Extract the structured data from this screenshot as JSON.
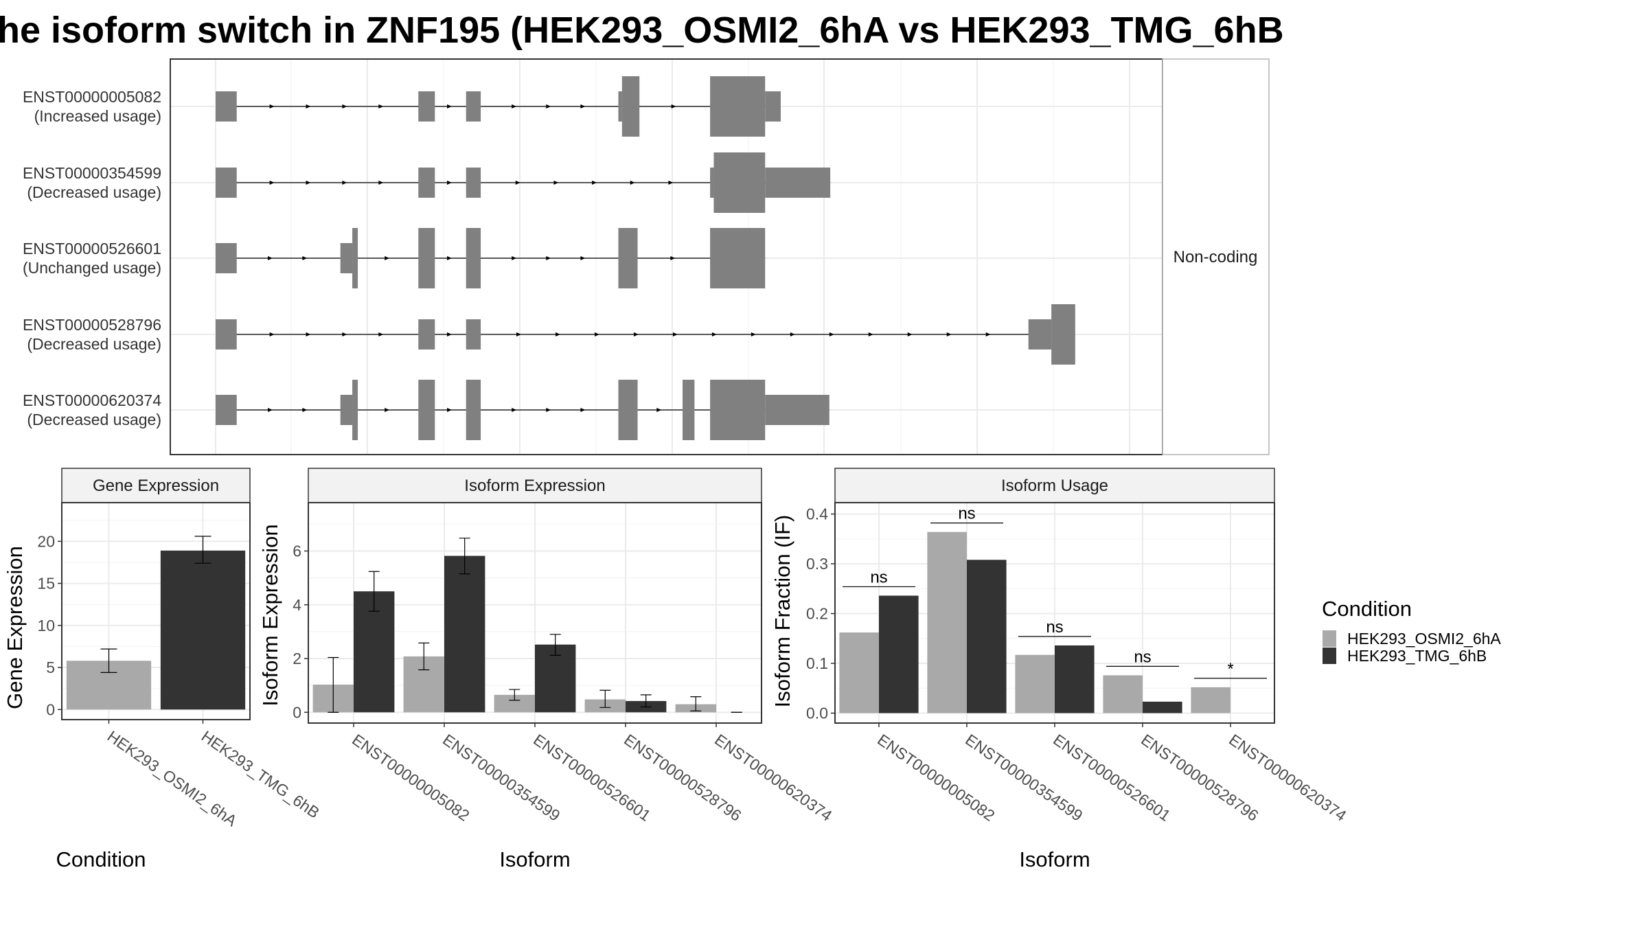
{
  "title": "he isoform switch in ZNF195 (HEK293_OSMI2_6hA vs HEK293_TMG_6hB",
  "colors": {
    "HEK293_OSMI2_6hA": "#a9a9a9",
    "HEK293_TMG_6hB": "#333333",
    "exon": "#808080",
    "grid": "#ebebeb",
    "panel_border": "#333333"
  },
  "chart_data": [
    {
      "type": "transcript_structure",
      "strip_label": "Non-coding",
      "x_range": [
        0,
        100
      ],
      "transcripts": [
        {
          "id": "ENST00000005082",
          "usage": "(Increased usage)",
          "exons": [
            {
              "start": 0,
              "end": 2.3,
              "size": "med"
            },
            {
              "start": 22.1,
              "end": 23.9,
              "size": "med"
            },
            {
              "start": 27.3,
              "end": 28.9,
              "size": "med"
            },
            {
              "start": 43.9,
              "end": 44.3,
              "size": "med"
            },
            {
              "start": 44.3,
              "end": 46.2,
              "size": "big"
            },
            {
              "start": 53.9,
              "end": 59.9,
              "size": "big"
            },
            {
              "start": 59.9,
              "end": 61.6,
              "size": "med"
            }
          ]
        },
        {
          "id": "ENST00000354599",
          "usage": "(Decreased usage)",
          "exons": [
            {
              "start": 0,
              "end": 2.3,
              "size": "med"
            },
            {
              "start": 22.1,
              "end": 23.9,
              "size": "med"
            },
            {
              "start": 27.3,
              "end": 28.9,
              "size": "med"
            },
            {
              "start": 53.9,
              "end": 54.3,
              "size": "med"
            },
            {
              "start": 54.3,
              "end": 59.9,
              "size": "big"
            },
            {
              "start": 59.9,
              "end": 67.0,
              "size": "med"
            }
          ]
        },
        {
          "id": "ENST00000526601",
          "usage": "(Unchanged usage)",
          "exons": [
            {
              "start": 0,
              "end": 2.3,
              "size": "med"
            },
            {
              "start": 13.6,
              "end": 14.9,
              "size": "med"
            },
            {
              "start": 14.9,
              "end": 15.5,
              "size": "big"
            },
            {
              "start": 22.1,
              "end": 23.9,
              "size": "big"
            },
            {
              "start": 27.3,
              "end": 28.9,
              "size": "big"
            },
            {
              "start": 43.9,
              "end": 46.0,
              "size": "big"
            },
            {
              "start": 53.9,
              "end": 59.9,
              "size": "big"
            }
          ]
        },
        {
          "id": "ENST00000528796",
          "usage": "(Decreased usage)",
          "exons": [
            {
              "start": 0,
              "end": 2.3,
              "size": "med"
            },
            {
              "start": 22.1,
              "end": 23.9,
              "size": "med"
            },
            {
              "start": 27.3,
              "end": 28.9,
              "size": "med"
            },
            {
              "start": 88.6,
              "end": 91.1,
              "size": "med"
            },
            {
              "start": 91.1,
              "end": 93.7,
              "size": "big"
            }
          ]
        },
        {
          "id": "ENST00000620374",
          "usage": "(Decreased usage)",
          "exons": [
            {
              "start": 0,
              "end": 2.3,
              "size": "med"
            },
            {
              "start": 13.6,
              "end": 14.9,
              "size": "med"
            },
            {
              "start": 14.9,
              "end": 15.5,
              "size": "big"
            },
            {
              "start": 22.1,
              "end": 23.9,
              "size": "big"
            },
            {
              "start": 27.3,
              "end": 28.9,
              "size": "big"
            },
            {
              "start": 43.9,
              "end": 46.0,
              "size": "big"
            },
            {
              "start": 50.9,
              "end": 52.2,
              "size": "big"
            },
            {
              "start": 53.9,
              "end": 59.9,
              "size": "big"
            },
            {
              "start": 59.9,
              "end": 66.9,
              "size": "med"
            }
          ]
        }
      ]
    },
    {
      "type": "bar",
      "strip_label": "Gene Expression",
      "xlabel": "Condition",
      "ylabel": "Gene Expression",
      "categories": [
        "HEK293_OSMI2_6hA",
        "HEK293_TMG_6hB"
      ],
      "series": [
        {
          "name": "HEK293_OSMI2_6hA",
          "values": [
            5.8,
            null
          ],
          "err_low": [
            4.4,
            null
          ],
          "err_high": [
            7.2,
            null
          ]
        },
        {
          "name": "HEK293_TMG_6hB",
          "values": [
            null,
            18.9
          ],
          "err_low": [
            null,
            17.4
          ],
          "err_high": [
            null,
            20.6
          ]
        }
      ],
      "yticks": [
        0,
        5,
        10,
        15,
        20
      ],
      "ylim": [
        -1.2,
        24.6
      ]
    },
    {
      "type": "bar",
      "strip_label": "Isoform Expression",
      "xlabel": "Isoform",
      "ylabel": "Isoform Expression",
      "categories": [
        "ENST00000005082",
        "ENST00000354599",
        "ENST00000526601",
        "ENST00000528796",
        "ENST00000620374"
      ],
      "series": [
        {
          "name": "HEK293_OSMI2_6hA",
          "values": [
            1.03,
            2.08,
            0.65,
            0.48,
            0.3
          ],
          "err_low": [
            0.0,
            1.58,
            0.45,
            0.18,
            0.05
          ],
          "err_high": [
            2.04,
            2.58,
            0.85,
            0.82,
            0.58
          ]
        },
        {
          "name": "HEK293_TMG_6hB",
          "values": [
            4.5,
            5.82,
            2.52,
            0.42,
            0.0
          ],
          "err_low": [
            3.76,
            5.15,
            2.12,
            0.2,
            0.0
          ],
          "err_high": [
            5.24,
            6.48,
            2.9,
            0.65,
            0.0
          ]
        }
      ],
      "yticks": [
        0,
        2,
        4,
        6
      ],
      "ylim": [
        -0.4,
        7.8
      ]
    },
    {
      "type": "bar",
      "strip_label": "Isoform Usage",
      "xlabel": "Isoform",
      "ylabel": "Isoform Fraction (IF)",
      "categories": [
        "ENST00000005082",
        "ENST00000354599",
        "ENST00000526601",
        "ENST00000528796",
        "ENST00000620374"
      ],
      "series": [
        {
          "name": "HEK293_OSMI2_6hA",
          "values": [
            0.162,
            0.364,
            0.117,
            0.076,
            0.052
          ]
        },
        {
          "name": "HEK293_TMG_6hB",
          "values": [
            0.236,
            0.308,
            0.136,
            0.023,
            0.0
          ]
        }
      ],
      "significance": [
        "ns",
        "ns",
        "ns",
        "ns",
        "*"
      ],
      "sig_line_y": [
        0.254,
        0.382,
        0.154,
        0.094,
        0.07
      ],
      "yticks": [
        0.0,
        0.1,
        0.2,
        0.3,
        0.4
      ],
      "ylim": [
        -0.02,
        0.4229
      ]
    }
  ],
  "legend": {
    "title": "Condition",
    "items": [
      {
        "label": "HEK293_OSMI2_6hA",
        "color": "#a9a9a9"
      },
      {
        "label": "HEK293_TMG_6hB",
        "color": "#333333"
      }
    ]
  }
}
